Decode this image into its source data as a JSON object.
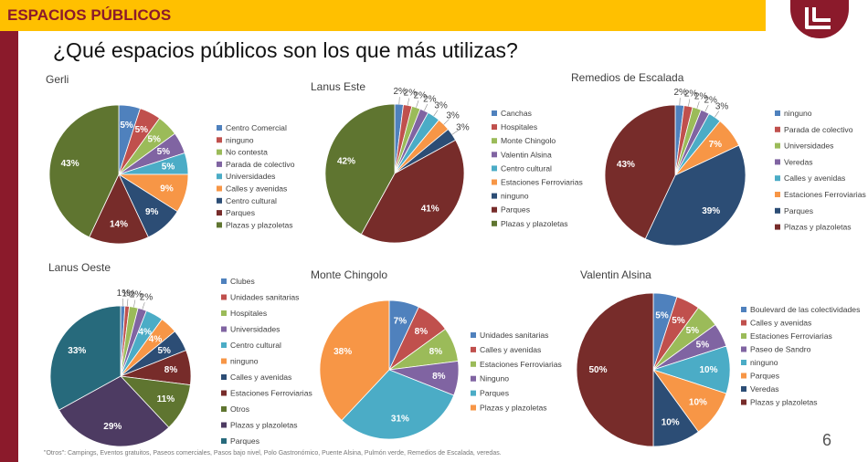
{
  "header": {
    "title": "ESPACIOS PÚBLICOS"
  },
  "question": "¿Qué espacios públicos son los que más utilizas?",
  "page_number": "6",
  "footnote": "\"Otros\": Campings, Eventos gratuitos, Paseos comerciales, Pasos bajo nivel, Polo Gastronómico, Puente Alsina, Pulmón verde, Remedios de Escalada, veredas.",
  "colors": {
    "brand": "#8b1a2b",
    "header": "#ffc000"
  },
  "chart_data": [
    {
      "type": "pie",
      "title": "Gerli",
      "categories": [
        "Centro Comercial",
        "ninguno",
        "No contesta",
        "Parada de colectivo",
        "Universidades",
        "Calles y avenidas",
        "Centro cultural",
        "Parques",
        "Plazas y plazoletas"
      ],
      "values": [
        5,
        5,
        5,
        5,
        5,
        9,
        9,
        14,
        43
      ],
      "labels": [
        "5%",
        "5%",
        "5%",
        "5%",
        "5%",
        "9%",
        "9%",
        "14%",
        "43%"
      ],
      "colors": [
        "#4f81bd",
        "#c0504d",
        "#9bbb59",
        "#8064a2",
        "#4bacc6",
        "#f79646",
        "#2c4d75",
        "#772c2a",
        "#5f7530"
      ]
    },
    {
      "type": "pie",
      "title": "Lanus Este",
      "categories": [
        "Canchas",
        "Hospitales",
        "Monte Chingolo",
        "Valentin Alsina",
        "Centro cultural",
        "Estaciones Ferroviarias",
        "ninguno",
        "Parques",
        "Plazas y plazoletas"
      ],
      "values": [
        2,
        2,
        2,
        2,
        3,
        3,
        3,
        41,
        42
      ],
      "labels": [
        "2%",
        "2%",
        "2%",
        "2%",
        "3%",
        "3%",
        "3%",
        "41%",
        "42%"
      ],
      "colors": [
        "#4f81bd",
        "#c0504d",
        "#9bbb59",
        "#8064a2",
        "#4bacc6",
        "#f79646",
        "#2c4d75",
        "#772c2a",
        "#5f7530"
      ]
    },
    {
      "type": "pie",
      "title": "Remedios de Escalada",
      "categories": [
        "ninguno",
        "Parada de colectivo",
        "Universidades",
        "Veredas",
        "Calles y avenidas",
        "Estaciones Ferroviarias",
        "Parques",
        "Plazas y plazoletas"
      ],
      "values": [
        2,
        2,
        2,
        2,
        3,
        7,
        39,
        43
      ],
      "labels": [
        "2%",
        "2%",
        "2%",
        "2%",
        "3%",
        "7%",
        "39%",
        "43%"
      ],
      "colors": [
        "#4f81bd",
        "#c0504d",
        "#9bbb59",
        "#8064a2",
        "#4bacc6",
        "#f79646",
        "#2c4d75",
        "#772c2a"
      ]
    },
    {
      "type": "pie",
      "title": "Lanus Oeste",
      "categories": [
        "Clubes",
        "Unidades sanitarias",
        "Hospitales",
        "Universidades",
        "Centro cultural",
        "ninguno",
        "Calles y avenidas",
        "Estaciones Ferroviarias",
        "Otros",
        "Plazas y plazoletas",
        "Parques"
      ],
      "values": [
        1,
        1,
        2,
        2,
        4,
        4,
        5,
        8,
        11,
        29,
        33
      ],
      "labels": [
        "1%",
        "1%",
        "2%",
        "2%",
        "4%",
        "4%",
        "5%",
        "8%",
        "11%",
        "29%",
        "33%"
      ],
      "colors": [
        "#4f81bd",
        "#c0504d",
        "#9bbb59",
        "#8064a2",
        "#4bacc6",
        "#f79646",
        "#2c4d75",
        "#772c2a",
        "#5f7530",
        "#4d3b62",
        "#276a7c"
      ]
    },
    {
      "type": "pie",
      "title": "Monte Chingolo",
      "categories": [
        "Unidades sanitarias",
        "Calles y avenidas",
        "Estaciones Ferroviarias",
        "Ninguno",
        "Parques",
        "Plazas y plazoletas"
      ],
      "values": [
        7,
        8,
        8,
        8,
        31,
        38
      ],
      "labels": [
        "7%",
        "8%",
        "8%",
        "8%",
        "31%",
        "38%"
      ],
      "colors": [
        "#4f81bd",
        "#c0504d",
        "#9bbb59",
        "#8064a2",
        "#4bacc6",
        "#f79646"
      ]
    },
    {
      "type": "pie",
      "title": "Valentin Alsina",
      "categories": [
        "Boulevard de las colectividades",
        "Calles y avenidas",
        "Estaciones Ferroviarias",
        "Paseo de Sandro",
        "ninguno",
        "Parques",
        "Veredas",
        "Plazas y plazoletas"
      ],
      "values": [
        5,
        5,
        5,
        5,
        10,
        10,
        10,
        50
      ],
      "labels": [
        "5%",
        "5%",
        "5%",
        "5%",
        "10%",
        "10%",
        "10%",
        "50%"
      ],
      "colors": [
        "#4f81bd",
        "#c0504d",
        "#9bbb59",
        "#8064a2",
        "#4bacc6",
        "#f79646",
        "#2c4d75",
        "#772c2a"
      ]
    }
  ]
}
